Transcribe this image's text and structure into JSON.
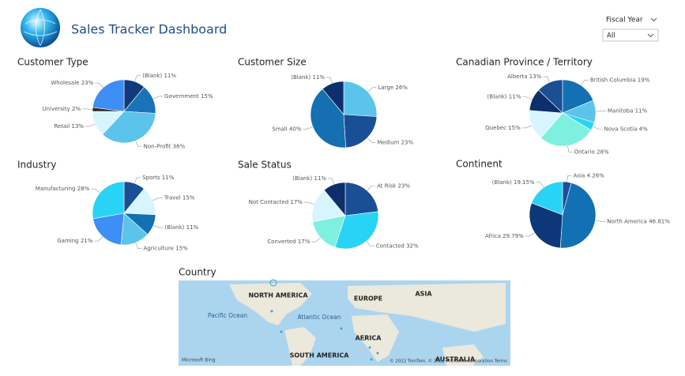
{
  "header": {
    "title": "Sales Tracker Dashboard"
  },
  "filter": {
    "label": "Fiscal Year",
    "value": "All"
  },
  "chart_data": [
    {
      "type": "pie",
      "title": "Customer Type",
      "categories": [
        "(Blank)",
        "Government",
        "Non-Profit",
        "Retail",
        "University",
        "Wholesale"
      ],
      "values": [
        11,
        15,
        36,
        13,
        2,
        23
      ],
      "value_labels": [
        "11%",
        "15%",
        "36%",
        "13%",
        "2%",
        "23%"
      ],
      "colors": [
        "#0f3b7a",
        "#1a73b8",
        "#5cc4ea",
        "#d6f5ff",
        "#2b2b2b",
        "#3d8ef5"
      ]
    },
    {
      "type": "pie",
      "title": "Customer Size",
      "categories": [
        "Large",
        "Medium",
        "Small",
        "(Blank)"
      ],
      "values": [
        26,
        23,
        40,
        11
      ],
      "value_labels": [
        "26%",
        "23%",
        "40%",
        "11%"
      ],
      "colors": [
        "#5cc4ea",
        "#1a4f96",
        "#1470b0",
        "#0d2f6b"
      ]
    },
    {
      "type": "pie",
      "title": "Canadian Province / Territory",
      "categories": [
        "British Columbia",
        "Manitoba",
        "Nova Scotia",
        "Ontario",
        "Quebec",
        "(Blank)",
        "Alberta"
      ],
      "values": [
        19,
        11,
        4,
        28,
        15,
        11,
        13
      ],
      "value_labels": [
        "19%",
        "11%",
        "4%",
        "28%",
        "15%",
        "11%",
        "13%"
      ],
      "colors": [
        "#1370b2",
        "#5cc4ea",
        "#29d3f5",
        "#7ff0e0",
        "#d6f5ff",
        "#0d2f6b",
        "#1a4f96"
      ]
    },
    {
      "type": "pie",
      "title": "Industry",
      "categories": [
        "Sports",
        "Travel",
        "(Blank)",
        "Agriculture",
        "Gaming",
        "Manufacturing"
      ],
      "values": [
        11,
        15,
        11,
        15,
        21,
        28
      ],
      "value_labels": [
        "11%",
        "15%",
        "11%",
        "15%",
        "21%",
        "28%"
      ],
      "colors": [
        "#1a4f96",
        "#d6f5ff",
        "#1370b2",
        "#5cc4ea",
        "#3d8ef5",
        "#29d3f5"
      ]
    },
    {
      "type": "pie",
      "title": "Sale Status",
      "categories": [
        "At Risk",
        "Contacted",
        "Converted",
        "Not Contacted",
        "(Blank)"
      ],
      "values": [
        23,
        32,
        17,
        17,
        11
      ],
      "value_labels": [
        "23%",
        "32%",
        "17%",
        "17%",
        "11%"
      ],
      "colors": [
        "#1a4f96",
        "#29d3f5",
        "#7ff0e0",
        "#d6f5ff",
        "#0d2f6b"
      ]
    },
    {
      "type": "pie",
      "title": "Continent",
      "categories": [
        "Asia",
        "North America",
        "Africa",
        "(Blank)"
      ],
      "values": [
        4.26,
        46.81,
        29.79,
        19.15
      ],
      "value_labels": [
        "4.26%",
        "46.81%",
        "29.79%",
        "19.15%"
      ],
      "colors": [
        "#1a4f96",
        "#1370b2",
        "#0d3778",
        "#29d3f5"
      ]
    }
  ],
  "map": {
    "title": "Country",
    "labels": [
      "NORTH AMERICA",
      "EUROPE",
      "ASIA",
      "AFRICA",
      "SOUTH AMERICA",
      "AUSTRALIA"
    ],
    "oceans": [
      "Pacific Ocean",
      "Atlantic Ocean"
    ],
    "logo": "Microsoft Bing",
    "attribution": "© 2022 TomTom, © 2022 Microsoft Corporation  Terms"
  }
}
